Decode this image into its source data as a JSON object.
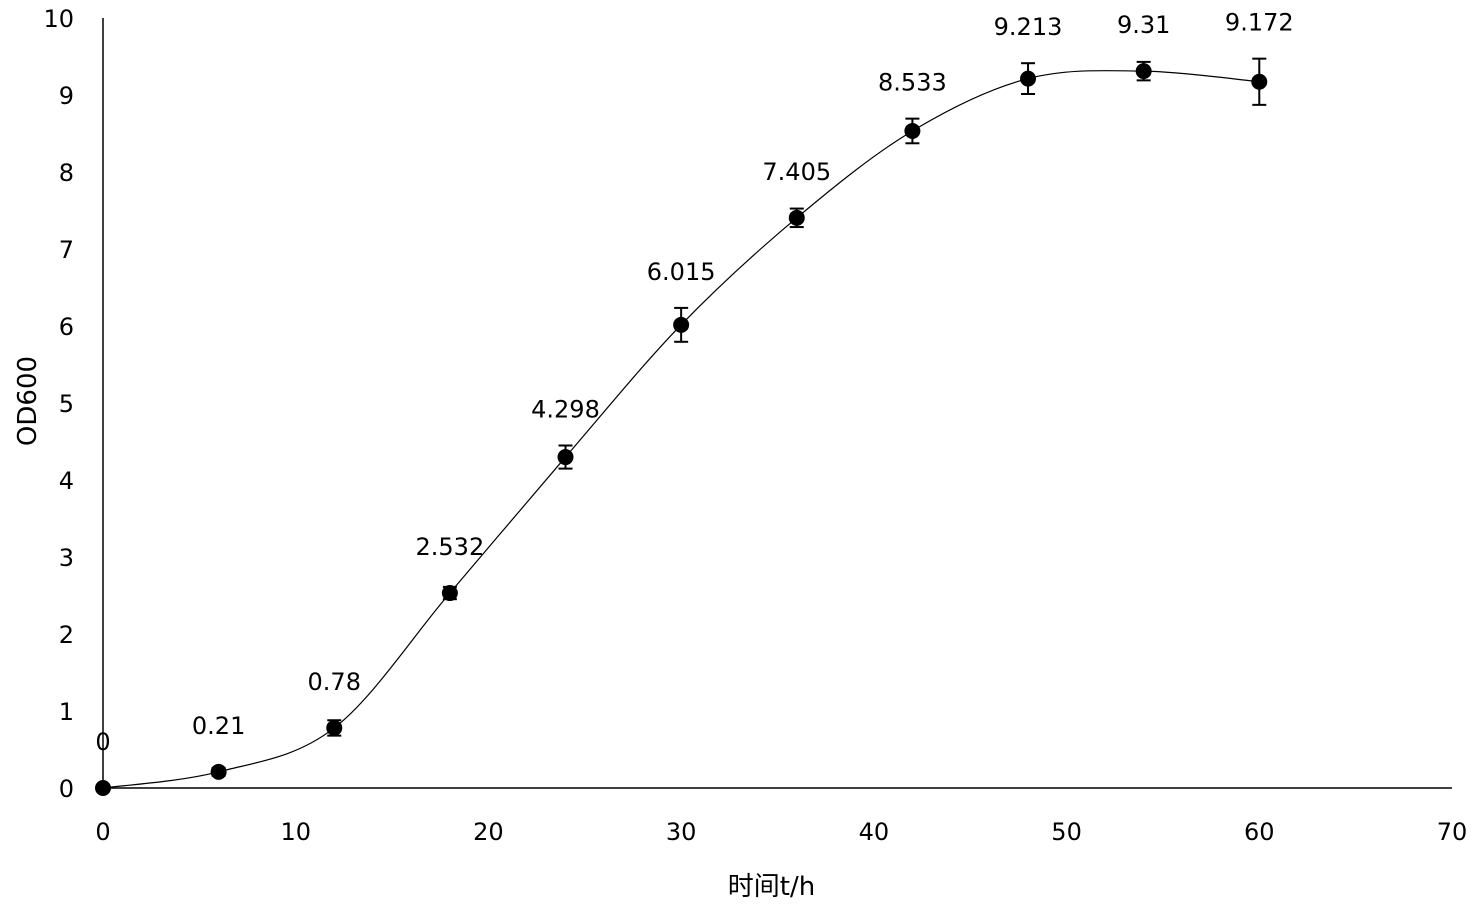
{
  "chart_data": {
    "type": "line",
    "title": "",
    "xlabel": "时间t/h",
    "ylabel": "OD600",
    "xlim": [
      0,
      70
    ],
    "ylim": [
      0,
      10
    ],
    "xticks": [
      0,
      10,
      20,
      30,
      40,
      50,
      60,
      70
    ],
    "yticks": [
      0,
      1,
      2,
      3,
      4,
      5,
      6,
      7,
      8,
      9,
      10
    ],
    "grid": false,
    "legend": "none",
    "series": [
      {
        "x": [
          0,
          6,
          12,
          18,
          24,
          30,
          36,
          42,
          48,
          54,
          60
        ],
        "values": [
          0,
          0.21,
          0.78,
          2.532,
          4.298,
          6.015,
          7.405,
          8.533,
          9.213,
          9.31,
          9.172
        ],
        "errors": [
          0.03,
          0.05,
          0.1,
          0.08,
          0.15,
          0.22,
          0.12,
          0.16,
          0.2,
          0.12,
          0.3
        ],
        "labels": [
          "0",
          "0.21",
          "0.78",
          "2.532",
          "4.298",
          "6.015",
          "7.405",
          "8.533",
          "9.213",
          "9.31",
          "9.172"
        ],
        "color": "#000000",
        "smooth": true
      }
    ]
  }
}
